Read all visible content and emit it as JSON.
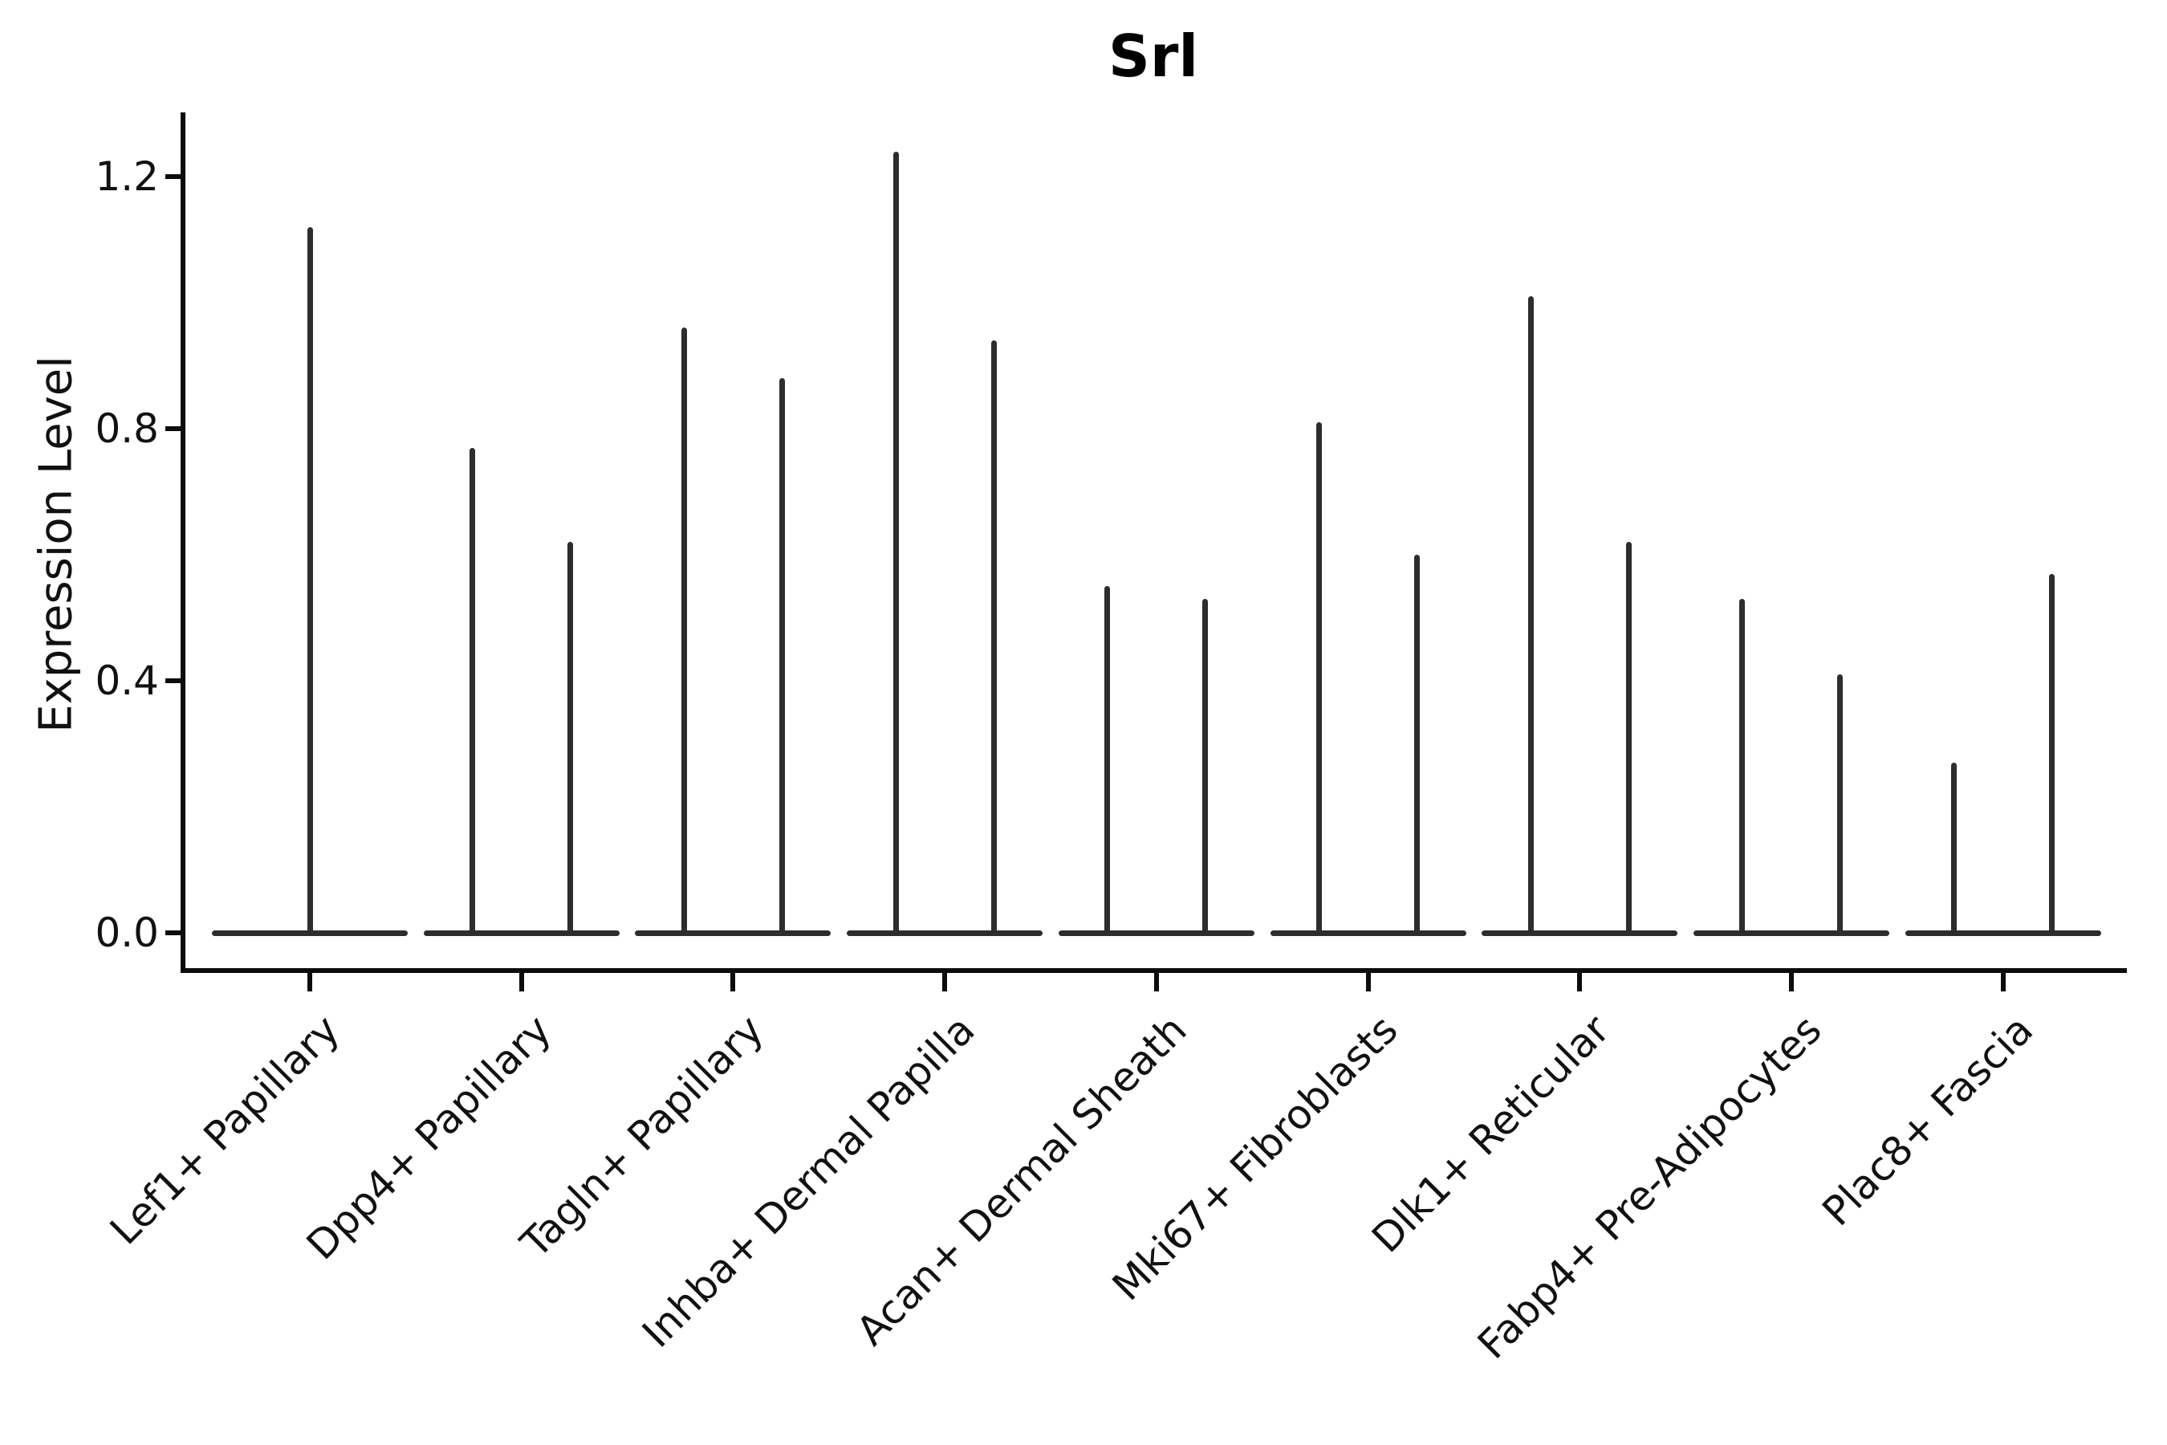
{
  "figure": {
    "title": "Srl",
    "background_color": "#ffffff",
    "axis_color": "#0c0c0c",
    "violin_color": "#2d2d2d"
  },
  "chart_data": {
    "type": "violin",
    "title": "Srl",
    "xlabel": "",
    "ylabel": "Expression Level",
    "ylim": [
      -0.06,
      1.3
    ],
    "yticks": [
      0.0,
      0.4,
      0.8,
      1.2
    ],
    "ytick_labels": [
      "0.0",
      "0.4",
      "0.8",
      "1.2"
    ],
    "grid": false,
    "legend": "none",
    "categories": [
      "Lef1+ Papillary",
      "Dpp4+ Papillary",
      "Tagln+ Papillary",
      "Inhba+ Dermal Papilla",
      "Acan+ Dermal Sheath",
      "Mki67+ Fibroblasts",
      "Dlk1+ Reticular",
      "Fabp4+ Pre-Adipocytes",
      "Plac8+ Fascia"
    ],
    "series": [
      {
        "name": "Lef1+ Papillary",
        "spike_maxima": [
          1.12
        ]
      },
      {
        "name": "Dpp4+ Papillary",
        "spike_maxima": [
          0.77,
          0.62
        ]
      },
      {
        "name": "Tagln+ Papillary",
        "spike_maxima": [
          0.96,
          0.88
        ]
      },
      {
        "name": "Inhba+ Dermal Papilla",
        "spike_maxima": [
          1.24,
          0.94
        ]
      },
      {
        "name": "Acan+ Dermal Sheath",
        "spike_maxima": [
          0.55,
          0.53
        ]
      },
      {
        "name": "Mki67+ Fibroblasts",
        "spike_maxima": [
          0.81,
          0.6
        ]
      },
      {
        "name": "Dlk1+ Reticular",
        "spike_maxima": [
          1.01,
          0.62
        ]
      },
      {
        "name": "Fabp4+ Pre-Adipocytes",
        "spike_maxima": [
          0.53,
          0.41
        ]
      },
      {
        "name": "Plac8+ Fascia",
        "spike_maxima": [
          0.27,
          0.57
        ]
      }
    ],
    "shape_note": "Each violin is a flat wide base at expression 0 with thin vertical spikes rising to the listed maxima; single-spike category has the spike centered, two-spike categories have spikes symmetric about the category center"
  }
}
